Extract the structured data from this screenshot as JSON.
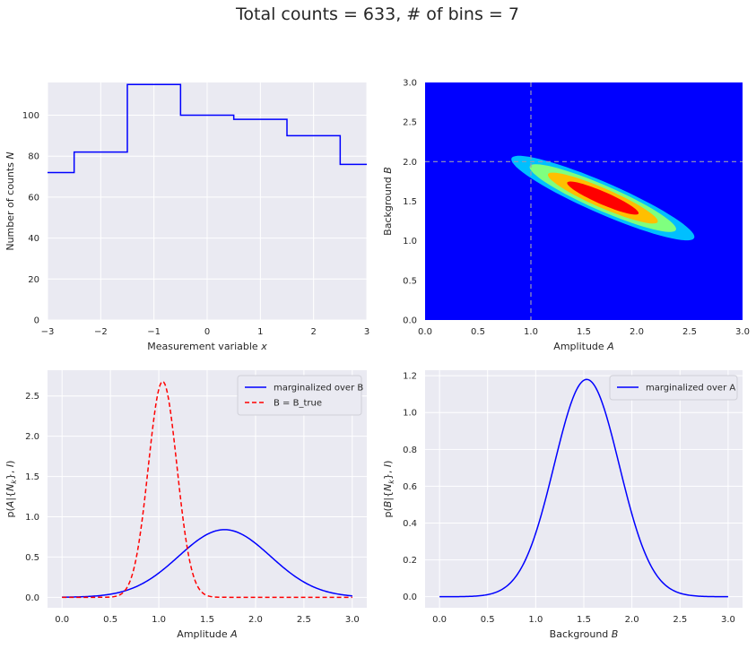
{
  "suptitle": "Total counts = 633,  # of bins = 7",
  "chart_data": [
    {
      "type": "line",
      "subtype": "step-histogram",
      "xlabel": "Measurement variable x",
      "ylabel": "Number of counts N",
      "xlim": [
        -3,
        3
      ],
      "ylim": [
        0,
        116
      ],
      "xticks": [
        -3,
        -2,
        -1,
        0,
        1,
        2,
        3
      ],
      "xtick_labels": [
        "−3",
        "−2",
        "−1",
        "0",
        "1",
        "2",
        "3"
      ],
      "yticks": [
        0,
        20,
        40,
        60,
        80,
        100
      ],
      "grid": true,
      "color": "#0000ff",
      "x": [
        -3,
        -2.5,
        -1.5,
        -0.5,
        0.5,
        1.5,
        2.5
      ],
      "values": [
        72,
        82,
        115,
        100,
        98,
        90,
        76
      ],
      "bin_edges_end": 3
    },
    {
      "type": "heatmap",
      "subtype": "filled-contour",
      "xlabel": "Amplitude A",
      "ylabel": "Background B",
      "xlim": [
        0,
        3
      ],
      "ylim": [
        0,
        3
      ],
      "xticks": [
        0.0,
        0.5,
        1.0,
        1.5,
        2.0,
        2.5,
        3.0
      ],
      "yticks": [
        0.0,
        0.5,
        1.0,
        1.5,
        2.0,
        2.5,
        3.0
      ],
      "background_color": "#0000ff",
      "reference_lines": {
        "A_true": 1.0,
        "B_true": 2.0
      },
      "center": [
        1.68,
        1.54
      ],
      "contour_levels": [
        {
          "color": "#00bfff",
          "half_length": 1.0,
          "half_width": 0.185
        },
        {
          "color": "#7fff7f",
          "half_length": 0.8,
          "half_width": 0.15
        },
        {
          "color": "#ffbf00",
          "half_length": 0.6,
          "half_width": 0.115
        },
        {
          "color": "#ff0000",
          "half_length": 0.39,
          "half_width": 0.075
        }
      ],
      "major_axis_direction": [
        0.86,
        -0.51
      ]
    },
    {
      "type": "line",
      "xlabel": "Amplitude A",
      "ylabel": "p(A|{N_k}, I)",
      "xlim": [
        -0.15,
        3.15
      ],
      "ylim": [
        -0.13,
        2.82
      ],
      "xticks": [
        0.0,
        0.5,
        1.0,
        1.5,
        2.0,
        2.5,
        3.0
      ],
      "yticks": [
        0.0,
        0.5,
        1.0,
        1.5,
        2.0,
        2.5
      ],
      "legend_position": "top-right",
      "series": [
        {
          "name": "marginalized over B",
          "color": "#0000ff",
          "dash": "solid",
          "peak_x": 1.68,
          "peak_y": 0.84,
          "sigma": 0.475
        },
        {
          "name": "B = B_true",
          "color": "#ff0000",
          "dash": "dashed",
          "peak_x": 1.04,
          "peak_y": 2.68,
          "sigma": 0.148
        }
      ]
    },
    {
      "type": "line",
      "xlabel": "Background B",
      "ylabel": "p(B|{N_k}, I)",
      "xlim": [
        -0.15,
        3.15
      ],
      "ylim": [
        -0.06,
        1.23
      ],
      "xticks": [
        0.0,
        0.5,
        1.0,
        1.5,
        2.0,
        2.5,
        3.0
      ],
      "yticks": [
        0.0,
        0.2,
        0.4,
        0.6,
        0.8,
        1.0,
        1.2
      ],
      "legend_position": "top-right",
      "series": [
        {
          "name": "marginalized over A",
          "color": "#0000ff",
          "dash": "solid",
          "peak_x": 1.53,
          "peak_y": 1.18,
          "sigma": 0.338
        }
      ]
    }
  ]
}
